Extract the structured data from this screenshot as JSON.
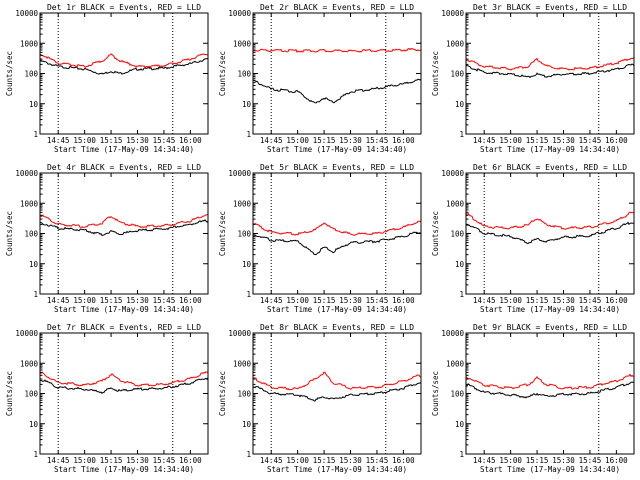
{
  "figure": {
    "xlabel": "Start Time (17-May-09 14:34:40)",
    "ylabel": "Counts/sec",
    "x_tick_labels": [
      "14:45",
      "15:00",
      "15:15",
      "15:30",
      "15:45",
      "16:00"
    ],
    "y_tick_labels": [
      "1",
      "10",
      "100",
      "1000",
      "10000"
    ],
    "colors": {
      "events": "#000000",
      "lld": "#ff0000",
      "axis": "#000000",
      "background": "#ffffff"
    }
  },
  "chart_data": [
    {
      "type": "line",
      "title": "Det 1r BLACK = Events, RED = LLD",
      "xlabel": "Start Time (17-May-09 14:34:40)",
      "ylabel": "Counts/sec",
      "yscale": "log",
      "ylim": [
        1,
        10000
      ],
      "xlim": [
        "14:34:40",
        "16:10:00"
      ],
      "x": [
        "14:36",
        "14:45",
        "15:00",
        "15:10",
        "15:15",
        "15:20",
        "15:30",
        "15:45",
        "16:00",
        "16:08"
      ],
      "series": [
        {
          "name": "Events",
          "color": "#000000",
          "values": [
            250,
            170,
            140,
            95,
            120,
            100,
            140,
            150,
            210,
            290
          ]
        },
        {
          "name": "LLD",
          "color": "#ff0000",
          "values": [
            420,
            220,
            170,
            260,
            420,
            260,
            170,
            180,
            300,
            450
          ]
        }
      ],
      "markers": [
        "14:45",
        "15:50"
      ]
    },
    {
      "type": "line",
      "title": "Det 2r BLACK = Events, RED = LLD",
      "xlabel": "Start Time (17-May-09 14:34:40)",
      "ylabel": "Counts/sec",
      "yscale": "log",
      "ylim": [
        1,
        10000
      ],
      "xlim": [
        "14:34:40",
        "16:10:00"
      ],
      "x": [
        "14:36",
        "14:45",
        "15:00",
        "15:10",
        "15:15",
        "15:20",
        "15:30",
        "15:45",
        "16:00",
        "16:08"
      ],
      "series": [
        {
          "name": "Events",
          "color": "#000000",
          "values": [
            55,
            30,
            25,
            10,
            16,
            11,
            25,
            32,
            45,
            60
          ]
        },
        {
          "name": "LLD",
          "color": "#ff0000",
          "values": [
            600,
            580,
            560,
            560,
            570,
            560,
            560,
            570,
            600,
            620
          ]
        }
      ],
      "markers": [
        "14:45",
        "15:50"
      ]
    },
    {
      "type": "line",
      "title": "Det 3r BLACK = Events, RED = LLD",
      "xlabel": "Start Time (17-May-09 14:34:40)",
      "ylabel": "Counts/sec",
      "yscale": "log",
      "ylim": [
        1,
        10000
      ],
      "xlim": [
        "14:34:40",
        "16:10:00"
      ],
      "x": [
        "14:36",
        "14:45",
        "15:00",
        "15:10",
        "15:15",
        "15:20",
        "15:30",
        "15:45",
        "16:00",
        "16:08"
      ],
      "series": [
        {
          "name": "Events",
          "color": "#000000",
          "values": [
            170,
            110,
            95,
            75,
            95,
            80,
            95,
            100,
            140,
            190
          ]
        },
        {
          "name": "LLD",
          "color": "#ff0000",
          "values": [
            280,
            170,
            140,
            170,
            300,
            180,
            140,
            150,
            220,
            320
          ]
        }
      ],
      "markers": [
        "15:50"
      ]
    },
    {
      "type": "line",
      "title": "Det 4r BLACK = Events, RED = LLD",
      "xlabel": "Start Time (17-May-09 14:34:40)",
      "ylabel": "Counts/sec",
      "yscale": "log",
      "ylim": [
        1,
        10000
      ],
      "xlim": [
        "14:34:40",
        "16:10:00"
      ],
      "x": [
        "14:36",
        "14:45",
        "15:00",
        "15:10",
        "15:15",
        "15:20",
        "15:30",
        "15:45",
        "16:00",
        "16:08"
      ],
      "series": [
        {
          "name": "Events",
          "color": "#000000",
          "values": [
            220,
            150,
            130,
            90,
            120,
            95,
            125,
            140,
            200,
            260
          ]
        },
        {
          "name": "LLD",
          "color": "#ff0000",
          "values": [
            380,
            200,
            170,
            220,
            390,
            230,
            170,
            180,
            260,
            400
          ]
        }
      ],
      "markers": [
        "14:45",
        "15:50"
      ]
    },
    {
      "type": "line",
      "title": "Det 5r BLACK = Events, RED = LLD",
      "xlabel": "Start Time (17-May-09 14:34:40)",
      "ylabel": "Counts/sec",
      "yscale": "log",
      "ylim": [
        1,
        10000
      ],
      "xlim": [
        "14:34:40",
        "16:10:00"
      ],
      "x": [
        "14:36",
        "14:45",
        "15:00",
        "15:10",
        "15:15",
        "15:20",
        "15:30",
        "15:45",
        "16:00",
        "16:08"
      ],
      "series": [
        {
          "name": "Events",
          "color": "#000000",
          "values": [
            90,
            60,
            55,
            20,
            35,
            25,
            50,
            55,
            80,
            110
          ]
        },
        {
          "name": "LLD",
          "color": "#ff0000",
          "values": [
            200,
            110,
            95,
            130,
            230,
            140,
            95,
            100,
            160,
            240
          ]
        }
      ],
      "markers": [
        "14:45",
        "15:50"
      ]
    },
    {
      "type": "line",
      "title": "Det 6r BLACK = Events, RED = LLD",
      "xlabel": "Start Time (17-May-09 14:34:40)",
      "ylabel": "Counts/sec",
      "yscale": "log",
      "ylim": [
        1,
        10000
      ],
      "xlim": [
        "14:34:40",
        "16:10:00"
      ],
      "x": [
        "14:36",
        "14:45",
        "15:00",
        "15:10",
        "15:15",
        "15:20",
        "15:30",
        "15:45",
        "16:00",
        "16:08"
      ],
      "series": [
        {
          "name": "Events",
          "color": "#000000",
          "values": [
            200,
            100,
            80,
            50,
            65,
            55,
            75,
            85,
            150,
            230
          ]
        },
        {
          "name": "LLD",
          "color": "#ff0000",
          "values": [
            420,
            170,
            150,
            190,
            330,
            200,
            150,
            160,
            260,
            480
          ]
        }
      ],
      "markers": [
        "14:45",
        "15:50"
      ]
    },
    {
      "type": "line",
      "title": "Det 7r BLACK = Events, RED = LLD",
      "xlabel": "Start Time (17-May-09 14:34:40)",
      "ylabel": "Counts/sec",
      "yscale": "log",
      "ylim": [
        1,
        10000
      ],
      "xlim": [
        "14:34:40",
        "16:10:00"
      ],
      "x": [
        "14:36",
        "14:45",
        "15:00",
        "15:10",
        "15:15",
        "15:20",
        "15:30",
        "15:45",
        "16:00",
        "16:08"
      ],
      "series": [
        {
          "name": "Events",
          "color": "#000000",
          "values": [
            280,
            160,
            140,
            110,
            150,
            120,
            140,
            150,
            220,
            320
          ]
        },
        {
          "name": "LLD",
          "color": "#ff0000",
          "values": [
            460,
            230,
            190,
            260,
            430,
            270,
            190,
            200,
            310,
            480
          ]
        }
      ],
      "markers": [
        "14:45",
        "15:50"
      ]
    },
    {
      "type": "line",
      "title": "Det 8r BLACK = Events, RED = LLD",
      "xlabel": "Start Time (17-May-09 14:34:40)",
      "ylabel": "Counts/sec",
      "yscale": "log",
      "ylim": [
        1,
        10000
      ],
      "xlim": [
        "14:34:40",
        "16:10:00"
      ],
      "x": [
        "14:36",
        "14:45",
        "15:00",
        "15:10",
        "15:15",
        "15:20",
        "15:30",
        "15:45",
        "16:00",
        "16:08"
      ],
      "series": [
        {
          "name": "Events",
          "color": "#000000",
          "values": [
            170,
            100,
            90,
            60,
            80,
            65,
            90,
            100,
            150,
            220
          ]
        },
        {
          "name": "LLD",
          "color": "#ff0000",
          "values": [
            300,
            160,
            140,
            300,
            500,
            230,
            150,
            160,
            260,
            380
          ]
        }
      ],
      "markers": [
        "14:45",
        "15:50"
      ]
    },
    {
      "type": "line",
      "title": "Det 9r BLACK = Events, RED = LLD",
      "xlabel": "Start Time (17-May-09 14:34:40)",
      "ylabel": "Counts/sec",
      "yscale": "log",
      "ylim": [
        1,
        10000
      ],
      "xlim": [
        "14:34:40",
        "16:10:00"
      ],
      "x": [
        "14:36",
        "14:45",
        "15:00",
        "15:10",
        "15:15",
        "15:20",
        "15:30",
        "15:45",
        "16:00",
        "16:08"
      ],
      "series": [
        {
          "name": "Events",
          "color": "#000000",
          "values": [
            190,
            110,
            90,
            75,
            100,
            80,
            95,
            100,
            160,
            230
          ]
        },
        {
          "name": "LLD",
          "color": "#ff0000",
          "values": [
            330,
            190,
            150,
            200,
            330,
            200,
            150,
            160,
            260,
            400
          ]
        }
      ],
      "markers": [
        "15:50"
      ]
    }
  ]
}
